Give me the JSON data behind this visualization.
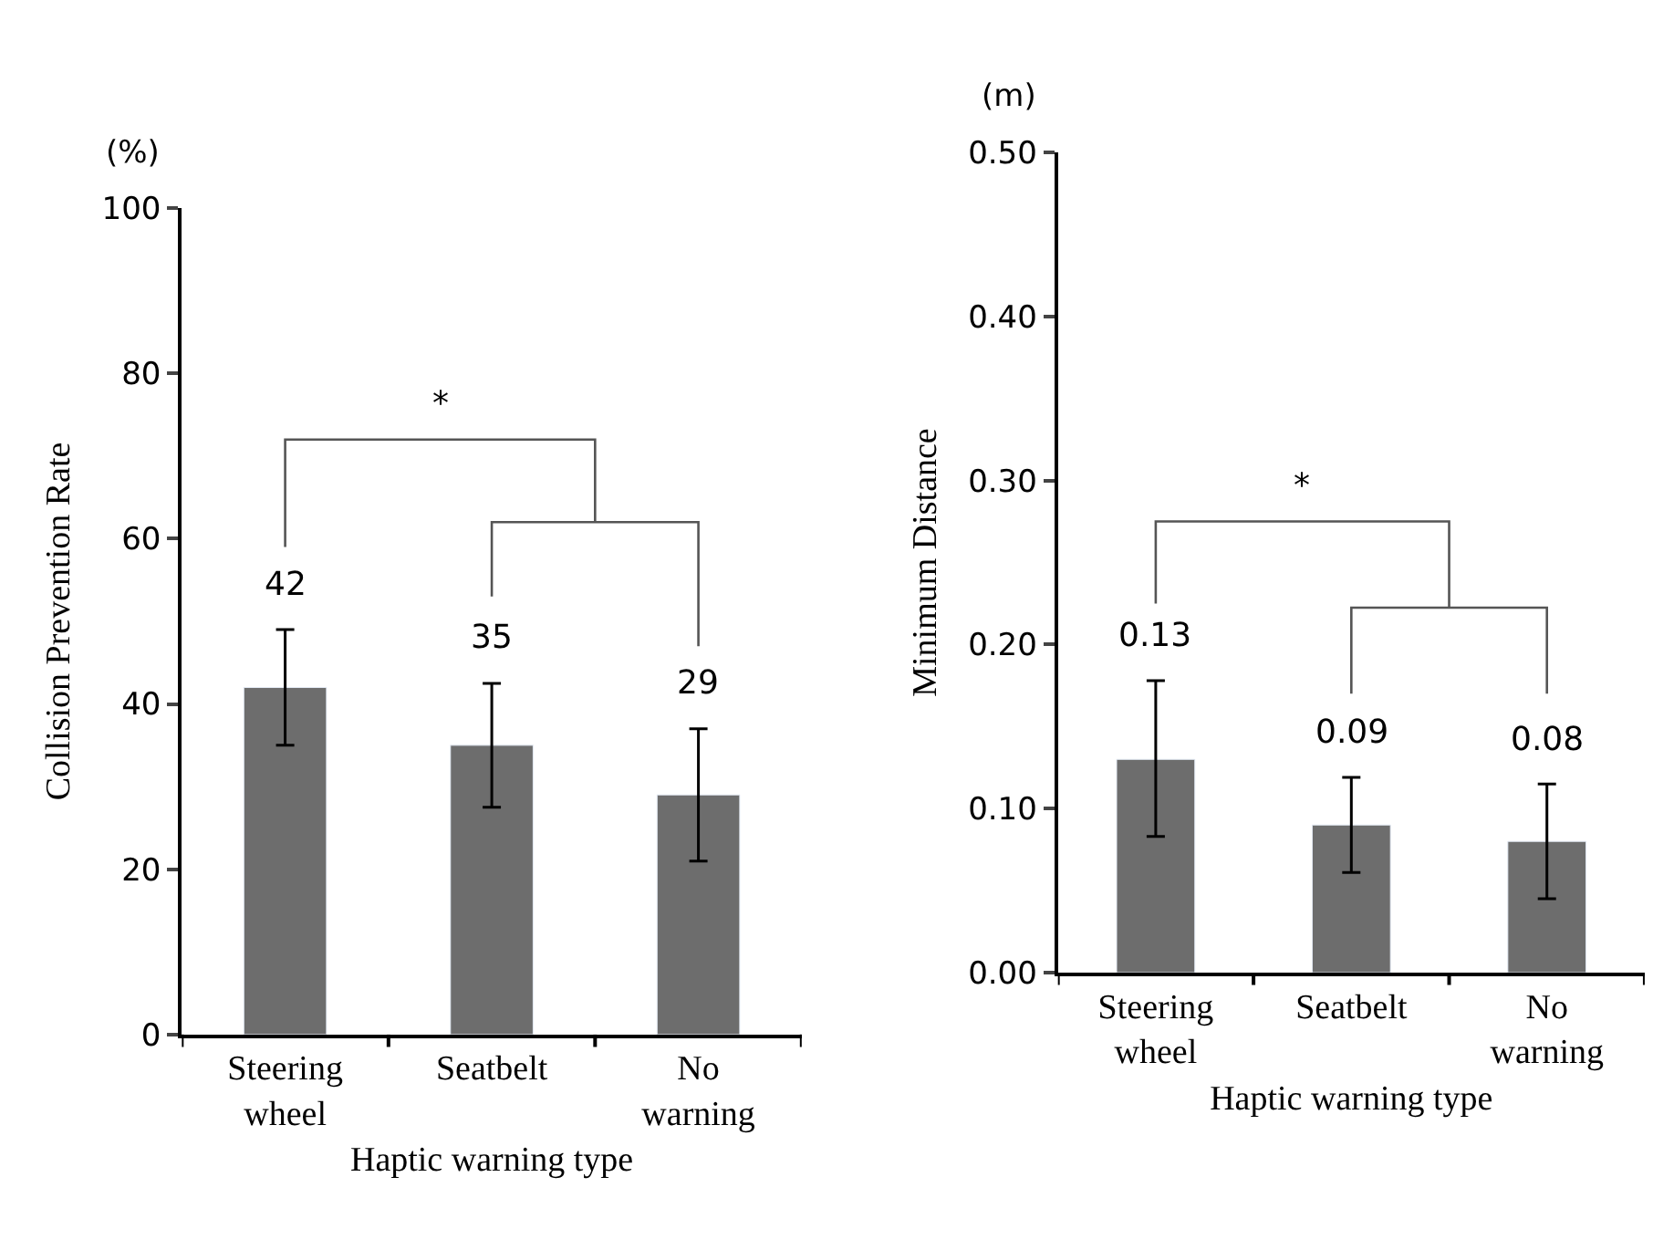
{
  "chart_data": [
    {
      "type": "bar",
      "xlabel": "Haptic warning type",
      "ylabel": "Collision Prevention Rate",
      "annotations": [
        "(%)",
        "*"
      ],
      "categories": [
        "Steering wheel",
        "Seatbelt",
        "No warning"
      ],
      "series": [
        {
          "color": "#6d6d6d",
          "values": [
            42,
            35,
            29
          ],
          "errors": [
            7,
            7.5,
            8
          ]
        }
      ],
      "ylim": [
        0,
        100
      ],
      "yticks": [
        0,
        20,
        40,
        60,
        80,
        100
      ],
      "data_labels": true
    },
    {
      "type": "bar",
      "xlabel": "Haptic warning type",
      "ylabel": "Minimum Distance",
      "annotations": [
        "(m)",
        "*"
      ],
      "categories": [
        "Steering wheel",
        "Seatbelt",
        "No warning"
      ],
      "series": [
        {
          "color": "#6d6d6d",
          "values": [
            0.13,
            0.09,
            0.08
          ],
          "errors": [
            [
              0.083,
              0.178
            ],
            [
              0.061,
              0.119
            ],
            [
              0.045,
              0.115
            ]
          ]
        }
      ],
      "ylim": [
        0,
        0.5
      ],
      "yticks": [
        {
          "value": 0,
          "label": "0.00"
        },
        {
          "value": 0.1,
          "label": "0.10"
        },
        {
          "value": 0.2,
          "label": "0.20"
        },
        {
          "value": 0.3,
          "label": "0.30"
        },
        {
          "value": 0.4,
          "label": "0.40"
        },
        {
          "value": 0.5,
          "label": "0.50"
        }
      ],
      "data_labels": true
    }
  ]
}
